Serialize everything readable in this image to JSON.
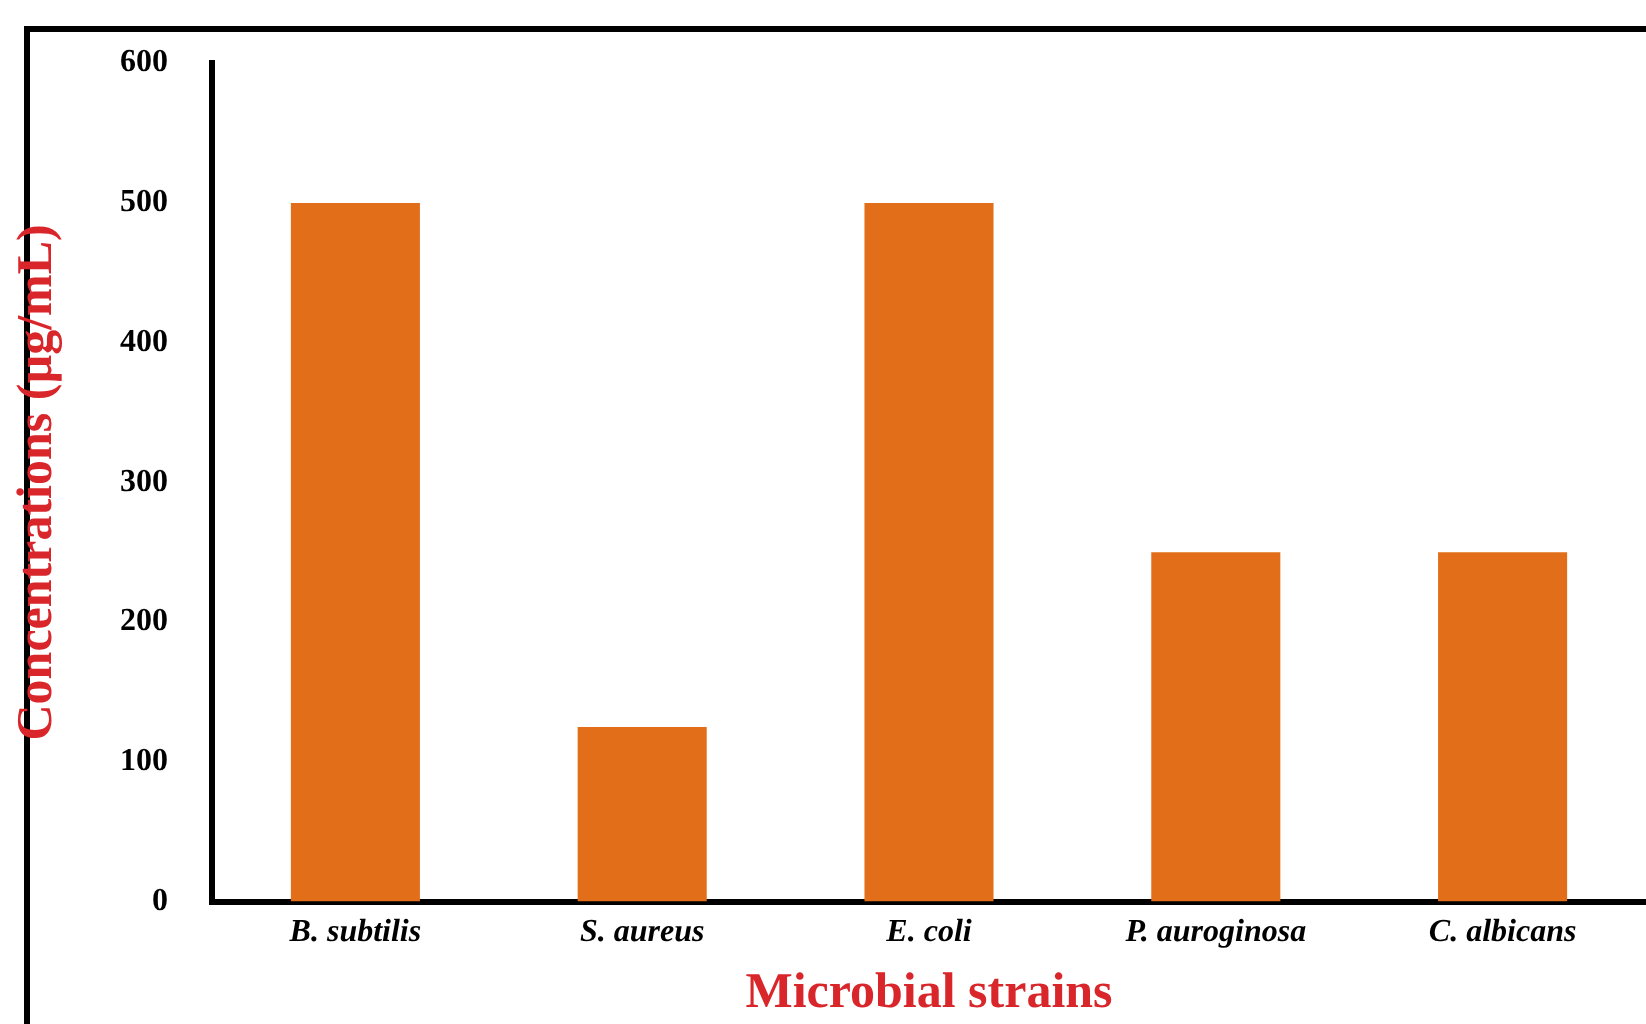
{
  "chart_data": {
    "type": "bar",
    "xlabel": "Microbial strains",
    "ylabel": "Concentrations (µg/mL)",
    "categories": [
      "B. subtilis",
      "S. aureus",
      "E. coli",
      "P. auroginosa",
      "C. albicans"
    ],
    "values": [
      500,
      125,
      500,
      250,
      250
    ],
    "color": "#e26e19",
    "ylim": [
      0,
      600
    ],
    "yticks": [
      0,
      100,
      200,
      300,
      400,
      500,
      600
    ],
    "grid": false,
    "legend": false
  }
}
